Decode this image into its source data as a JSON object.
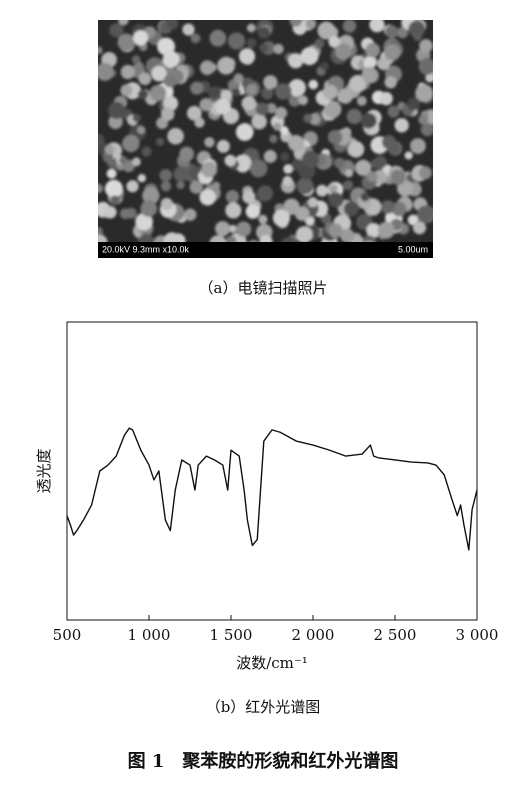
{
  "sem_image": {
    "info": "20.0kV 9.3mm x10.0k",
    "scale": "5.00um",
    "caption": "（a）电镜扫描照片"
  },
  "chart_data": {
    "type": "line",
    "caption": "（b）红外光谱图",
    "xlabel": "波数/cm⁻¹",
    "ylabel": "透光度",
    "xlim": [
      500,
      3000
    ],
    "xticks": [
      500,
      {
        "value": 1000,
        "label": "1 000"
      },
      {
        "value": 1500,
        "label": "1 500"
      },
      {
        "value": 2000,
        "label": "2 000"
      },
      {
        "value": 2500,
        "label": "2 500"
      },
      {
        "value": 3000,
        "label": "3 000"
      }
    ],
    "ylim": [
      0,
      100
    ],
    "x": [
      500,
      520,
      540,
      560,
      600,
      650,
      700,
      750,
      800,
      850,
      880,
      900,
      950,
      1000,
      1030,
      1060,
      1100,
      1130,
      1160,
      1200,
      1250,
      1280,
      1300,
      1350,
      1400,
      1450,
      1480,
      1500,
      1550,
      1580,
      1600,
      1630,
      1660,
      1700,
      1750,
      1800,
      1900,
      2000,
      2100,
      2200,
      2300,
      2350,
      2370,
      2400,
      2500,
      2600,
      2700,
      2750,
      2800,
      2850,
      2880,
      2900,
      2920,
      2950,
      2970,
      3000
    ],
    "series": [
      {
        "color": "#111111",
        "values": [
          35,
          32,
          28.5,
          30,
          33.5,
          38.6,
          50,
          52,
          55,
          62,
          64.4,
          63.8,
          57,
          52,
          47,
          50,
          33.5,
          30,
          43.6,
          53.7,
          52,
          43.6,
          52,
          55,
          53.7,
          52,
          43.6,
          57,
          55,
          43.6,
          33.5,
          25,
          27,
          60,
          63.8,
          63,
          60,
          58.7,
          57,
          55,
          55.7,
          58.7,
          55,
          54.4,
          53.7,
          53,
          52.7,
          52,
          48.7,
          40,
          35,
          38.6,
          32,
          23.5,
          37,
          43.6
        ]
      }
    ]
  },
  "figure_caption": "图 1　聚苯胺的形貌和红外光谱图"
}
